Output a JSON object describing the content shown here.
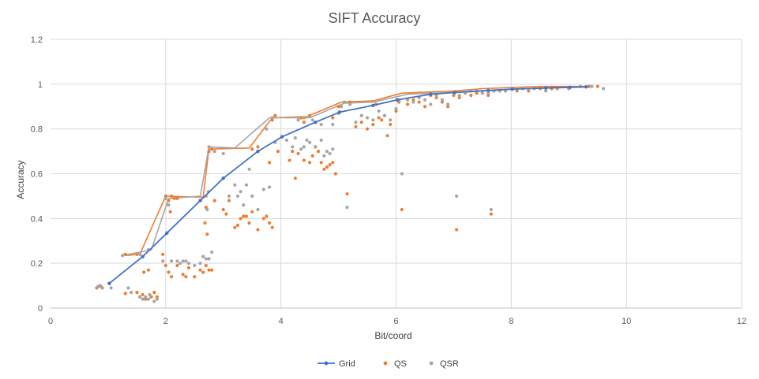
{
  "chart_data": {
    "type": "scatter",
    "title": "SIFT Accuracy",
    "xlabel": "Bit/coord",
    "ylabel": "Accuracy",
    "xlim": [
      0,
      12
    ],
    "ylim": [
      0,
      1.2
    ],
    "x_ticks": [
      0,
      2,
      4,
      6,
      8,
      10,
      12
    ],
    "y_ticks": [
      0,
      0.2,
      0.4,
      0.6,
      0.8,
      1,
      1.2
    ],
    "x_tick_labels": [
      "0",
      "2",
      "4",
      "6",
      "8",
      "10",
      "12"
    ],
    "y_tick_labels": [
      "0",
      "0.2",
      "0.4",
      "0.6",
      "0.8",
      "1",
      "1.2"
    ],
    "grid": true,
    "legend_position": "bottom",
    "series": [
      {
        "name": "Grid",
        "kind": "line-markers",
        "color": "#4472C4",
        "points": [
          [
            1.02,
            0.11
          ],
          [
            1.6,
            0.23
          ],
          [
            2.02,
            0.335
          ],
          [
            2.6,
            0.48
          ],
          [
            3.0,
            0.58
          ],
          [
            3.6,
            0.7
          ],
          [
            4.02,
            0.765
          ],
          [
            4.6,
            0.83
          ],
          [
            5.02,
            0.875
          ],
          [
            5.6,
            0.905
          ],
          [
            6.02,
            0.93
          ],
          [
            6.6,
            0.955
          ],
          [
            7.02,
            0.963
          ],
          [
            7.6,
            0.972
          ],
          [
            8.02,
            0.978
          ],
          [
            8.6,
            0.983
          ],
          [
            9.02,
            0.986
          ],
          [
            9.3,
            0.988
          ]
        ]
      },
      {
        "name": "QS",
        "kind": "scatter",
        "color": "#ED7D31",
        "points": [
          [
            0.8,
            0.09
          ],
          [
            0.85,
            0.1
          ],
          [
            0.88,
            0.095
          ],
          [
            0.9,
            0.09
          ],
          [
            1.3,
            0.065
          ],
          [
            1.5,
            0.07
          ],
          [
            1.55,
            0.05
          ],
          [
            1.6,
            0.06
          ],
          [
            1.65,
            0.04
          ],
          [
            1.75,
            0.05
          ],
          [
            1.8,
            0.07
          ],
          [
            1.85,
            0.05
          ],
          [
            1.7,
            0.17
          ],
          [
            1.62,
            0.16
          ],
          [
            1.3,
            0.24
          ],
          [
            1.5,
            0.24
          ],
          [
            1.95,
            0.24
          ],
          [
            2.0,
            0.5
          ],
          [
            2.05,
            0.48
          ],
          [
            2.08,
            0.43
          ],
          [
            2.1,
            0.5
          ],
          [
            2.15,
            0.49
          ],
          [
            2.2,
            0.49
          ],
          [
            2.0,
            0.19
          ],
          [
            2.05,
            0.16
          ],
          [
            2.1,
            0.14
          ],
          [
            2.2,
            0.19
          ],
          [
            2.3,
            0.15
          ],
          [
            2.35,
            0.14
          ],
          [
            2.4,
            0.18
          ],
          [
            2.5,
            0.14
          ],
          [
            2.6,
            0.17
          ],
          [
            2.65,
            0.16
          ],
          [
            2.7,
            0.19
          ],
          [
            2.75,
            0.17
          ],
          [
            2.8,
            0.17
          ],
          [
            2.7,
            0.45
          ],
          [
            2.72,
            0.33
          ],
          [
            2.68,
            0.38
          ],
          [
            2.75,
            0.7
          ],
          [
            2.8,
            0.71
          ],
          [
            2.85,
            0.48
          ],
          [
            3.0,
            0.44
          ],
          [
            3.05,
            0.42
          ],
          [
            3.1,
            0.48
          ],
          [
            3.2,
            0.36
          ],
          [
            3.25,
            0.37
          ],
          [
            3.3,
            0.4
          ],
          [
            3.35,
            0.41
          ],
          [
            3.4,
            0.41
          ],
          [
            3.45,
            0.38
          ],
          [
            3.5,
            0.43
          ],
          [
            3.6,
            0.35
          ],
          [
            3.7,
            0.4
          ],
          [
            3.75,
            0.41
          ],
          [
            3.8,
            0.38
          ],
          [
            3.85,
            0.36
          ],
          [
            3.5,
            0.71
          ],
          [
            3.6,
            0.72
          ],
          [
            3.8,
            0.65
          ],
          [
            3.85,
            0.84
          ],
          [
            3.9,
            0.86
          ],
          [
            3.95,
            0.7
          ],
          [
            4.15,
            0.66
          ],
          [
            4.2,
            0.7
          ],
          [
            4.3,
            0.69
          ],
          [
            4.35,
            0.85
          ],
          [
            4.4,
            0.66
          ],
          [
            4.5,
            0.65
          ],
          [
            4.55,
            0.68
          ],
          [
            4.6,
            0.72
          ],
          [
            4.65,
            0.7
          ],
          [
            4.7,
            0.65
          ],
          [
            4.75,
            0.62
          ],
          [
            4.8,
            0.63
          ],
          [
            4.85,
            0.64
          ],
          [
            4.9,
            0.65
          ],
          [
            4.95,
            0.6
          ],
          [
            4.25,
            0.58
          ],
          [
            4.35,
            0.85
          ],
          [
            4.4,
            0.83
          ],
          [
            4.5,
            0.86
          ],
          [
            4.9,
            0.85
          ],
          [
            5.0,
            0.9
          ],
          [
            5.1,
            0.92
          ],
          [
            5.2,
            0.92
          ],
          [
            5.15,
            0.51
          ],
          [
            5.3,
            0.81
          ],
          [
            5.4,
            0.83
          ],
          [
            5.5,
            0.8
          ],
          [
            5.6,
            0.82
          ],
          [
            5.65,
            0.91
          ],
          [
            5.7,
            0.85
          ],
          [
            5.75,
            0.84
          ],
          [
            5.8,
            0.86
          ],
          [
            5.85,
            0.77
          ],
          [
            5.9,
            0.82
          ],
          [
            6.0,
            0.88
          ],
          [
            6.05,
            0.92
          ],
          [
            6.1,
            0.44
          ],
          [
            6.2,
            0.91
          ],
          [
            6.3,
            0.93
          ],
          [
            6.4,
            0.92
          ],
          [
            6.5,
            0.9
          ],
          [
            6.6,
            0.95
          ],
          [
            6.7,
            0.94
          ],
          [
            6.8,
            0.92
          ],
          [
            6.9,
            0.9
          ],
          [
            7.0,
            0.95
          ],
          [
            7.05,
            0.35
          ],
          [
            7.1,
            0.94
          ],
          [
            7.2,
            0.96
          ],
          [
            7.3,
            0.95
          ],
          [
            7.4,
            0.96
          ],
          [
            7.5,
            0.96
          ],
          [
            7.6,
            0.95
          ],
          [
            7.65,
            0.42
          ],
          [
            7.7,
            0.97
          ],
          [
            7.8,
            0.97
          ],
          [
            7.9,
            0.97
          ],
          [
            8.0,
            0.98
          ],
          [
            8.1,
            0.97
          ],
          [
            8.2,
            0.98
          ],
          [
            8.3,
            0.97
          ],
          [
            8.5,
            0.98
          ],
          [
            8.7,
            0.98
          ],
          [
            9.0,
            0.98
          ],
          [
            9.2,
            0.99
          ],
          [
            9.35,
            0.99
          ],
          [
            9.5,
            0.99
          ]
        ]
      },
      {
        "name": "QSR",
        "kind": "scatter",
        "color": "#A5A5A5",
        "points": [
          [
            0.82,
            0.095
          ],
          [
            0.86,
            0.1
          ],
          [
            0.9,
            0.09
          ],
          [
            1.05,
            0.09
          ],
          [
            1.35,
            0.09
          ],
          [
            1.4,
            0.07
          ],
          [
            1.55,
            0.05
          ],
          [
            1.6,
            0.04
          ],
          [
            1.65,
            0.05
          ],
          [
            1.7,
            0.04
          ],
          [
            1.72,
            0.06
          ],
          [
            1.8,
            0.03
          ],
          [
            1.85,
            0.04
          ],
          [
            1.25,
            0.235
          ],
          [
            1.55,
            0.24
          ],
          [
            1.7,
            0.26
          ],
          [
            1.95,
            0.21
          ],
          [
            2.0,
            0.49
          ],
          [
            2.05,
            0.46
          ],
          [
            2.1,
            0.21
          ],
          [
            2.2,
            0.21
          ],
          [
            2.25,
            0.2
          ],
          [
            2.3,
            0.21
          ],
          [
            2.35,
            0.21
          ],
          [
            2.4,
            0.2
          ],
          [
            2.5,
            0.19
          ],
          [
            2.6,
            0.2
          ],
          [
            2.65,
            0.23
          ],
          [
            2.7,
            0.22
          ],
          [
            2.75,
            0.22
          ],
          [
            2.8,
            0.25
          ],
          [
            2.72,
            0.44
          ],
          [
            2.74,
            0.52
          ],
          [
            2.7,
            0.5
          ],
          [
            2.75,
            0.72
          ],
          [
            2.85,
            0.7
          ],
          [
            3.0,
            0.69
          ],
          [
            3.1,
            0.5
          ],
          [
            3.2,
            0.55
          ],
          [
            3.25,
            0.5
          ],
          [
            3.3,
            0.52
          ],
          [
            3.35,
            0.46
          ],
          [
            3.4,
            0.55
          ],
          [
            3.45,
            0.62
          ],
          [
            3.5,
            0.5
          ],
          [
            3.6,
            0.44
          ],
          [
            3.7,
            0.53
          ],
          [
            3.8,
            0.54
          ],
          [
            3.75,
            0.8
          ],
          [
            3.85,
            0.85
          ],
          [
            3.9,
            0.74
          ],
          [
            4.1,
            0.75
          ],
          [
            4.2,
            0.72
          ],
          [
            4.25,
            0.76
          ],
          [
            4.3,
            0.84
          ],
          [
            4.35,
            0.71
          ],
          [
            4.4,
            0.72
          ],
          [
            4.45,
            0.75
          ],
          [
            4.5,
            0.74
          ],
          [
            4.6,
            0.72
          ],
          [
            4.7,
            0.75
          ],
          [
            4.75,
            0.68
          ],
          [
            4.8,
            0.7
          ],
          [
            4.85,
            0.69
          ],
          [
            4.9,
            0.71
          ],
          [
            4.4,
            0.85
          ],
          [
            4.55,
            0.84
          ],
          [
            4.7,
            0.82
          ],
          [
            4.9,
            0.82
          ],
          [
            5.0,
            0.87
          ],
          [
            5.05,
            0.9
          ],
          [
            5.1,
            0.92
          ],
          [
            5.2,
            0.91
          ],
          [
            5.15,
            0.45
          ],
          [
            5.3,
            0.83
          ],
          [
            5.4,
            0.86
          ],
          [
            5.5,
            0.85
          ],
          [
            5.6,
            0.84
          ],
          [
            5.7,
            0.88
          ],
          [
            5.8,
            0.86
          ],
          [
            5.9,
            0.84
          ],
          [
            6.0,
            0.89
          ],
          [
            6.05,
            0.93
          ],
          [
            6.1,
            0.6
          ],
          [
            6.2,
            0.93
          ],
          [
            6.3,
            0.92
          ],
          [
            6.4,
            0.94
          ],
          [
            6.5,
            0.93
          ],
          [
            6.6,
            0.91
          ],
          [
            6.7,
            0.95
          ],
          [
            6.8,
            0.93
          ],
          [
            6.9,
            0.91
          ],
          [
            7.0,
            0.96
          ],
          [
            7.05,
            0.5
          ],
          [
            7.1,
            0.95
          ],
          [
            7.2,
            0.96
          ],
          [
            7.3,
            0.97
          ],
          [
            7.4,
            0.97
          ],
          [
            7.5,
            0.96
          ],
          [
            7.6,
            0.96
          ],
          [
            7.65,
            0.44
          ],
          [
            7.7,
            0.97
          ],
          [
            7.8,
            0.97
          ],
          [
            7.9,
            0.97
          ],
          [
            8.0,
            0.98
          ],
          [
            8.2,
            0.98
          ],
          [
            8.4,
            0.98
          ],
          [
            8.6,
            0.97
          ],
          [
            8.8,
            0.98
          ],
          [
            9.0,
            0.98
          ],
          [
            9.2,
            0.99
          ],
          [
            9.4,
            0.99
          ],
          [
            9.6,
            0.98
          ]
        ]
      },
      {
        "name": "",
        "kind": "envelope",
        "color": "#ED7D31",
        "points": [
          [
            1.3,
            0.235
          ],
          [
            1.55,
            0.24
          ],
          [
            2.0,
            0.5
          ],
          [
            2.65,
            0.495
          ],
          [
            2.75,
            0.71
          ],
          [
            3.45,
            0.715
          ],
          [
            3.85,
            0.85
          ],
          [
            4.45,
            0.855
          ],
          [
            5.05,
            0.92
          ],
          [
            5.6,
            0.925
          ],
          [
            6.1,
            0.96
          ],
          [
            7.0,
            0.97
          ],
          [
            7.5,
            0.98
          ],
          [
            8.5,
            0.99
          ],
          [
            9.3,
            0.99
          ]
        ]
      },
      {
        "name": "",
        "kind": "envelope",
        "color": "#A5A5A5",
        "points": [
          [
            1.25,
            0.235
          ],
          [
            1.75,
            0.26
          ],
          [
            2.05,
            0.49
          ],
          [
            2.6,
            0.5
          ],
          [
            2.75,
            0.72
          ],
          [
            3.2,
            0.715
          ],
          [
            3.8,
            0.85
          ],
          [
            4.5,
            0.85
          ],
          [
            5.1,
            0.915
          ],
          [
            5.6,
            0.92
          ],
          [
            6.2,
            0.955
          ],
          [
            7.2,
            0.965
          ],
          [
            8.2,
            0.98
          ],
          [
            9.0,
            0.985
          ]
        ]
      }
    ]
  }
}
